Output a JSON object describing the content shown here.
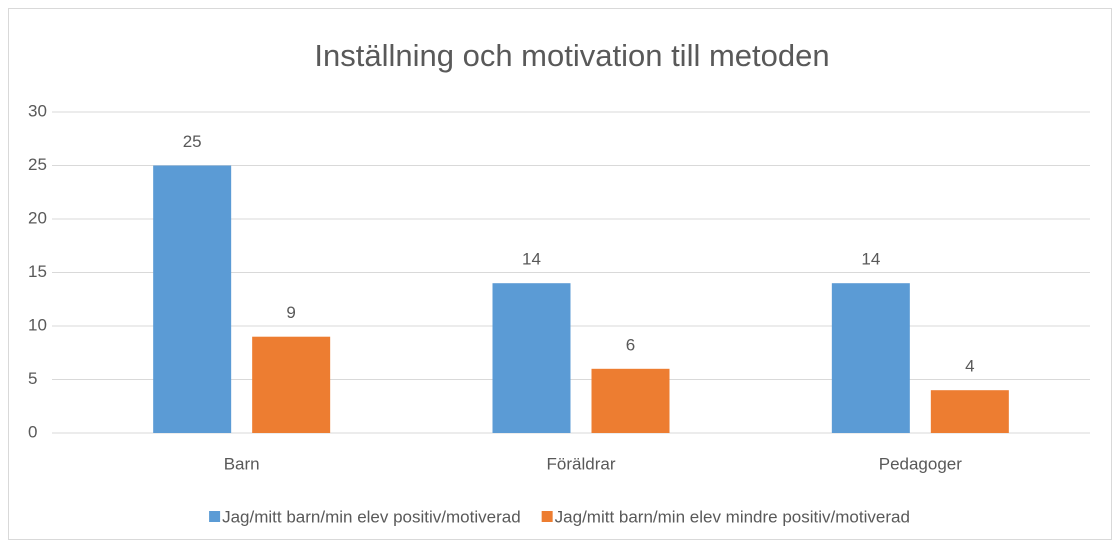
{
  "chart_data": {
    "type": "bar",
    "title": "Inställning och motivation till metoden",
    "categories": [
      "Barn",
      "Föräldrar",
      "Pedagoger"
    ],
    "series": [
      {
        "name": "Jag/mitt barn/min elev positiv/motiverad",
        "color": "#5b9bd5",
        "values": [
          25,
          14,
          14
        ]
      },
      {
        "name": "Jag/mitt barn/min elev mindre positiv/motiverad",
        "color": "#ed7d31",
        "values": [
          9,
          6,
          4
        ]
      }
    ],
    "ylim": [
      0,
      30
    ],
    "yticks": [
      0,
      5,
      10,
      15,
      20,
      25,
      30
    ],
    "grid": true,
    "legend": "bottom"
  }
}
